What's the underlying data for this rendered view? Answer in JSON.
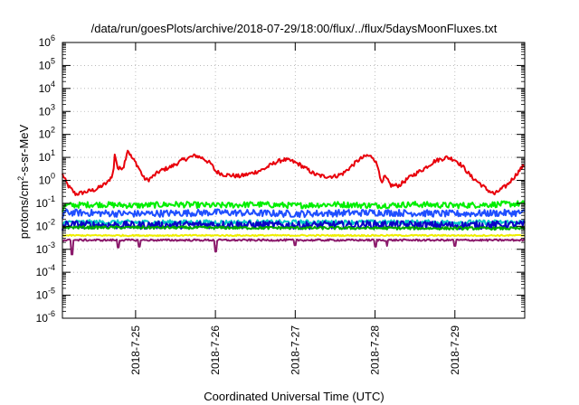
{
  "chart_data": {
    "type": "line",
    "title": "/data/run/goesPlots/archive/2018-07-29/18:00/flux/../flux/5daysMoonFluxes.txt",
    "xlabel": "Coordinated Universal Time (UTC)",
    "ylabel": {
      "prefix": "protons/cm",
      "sup": "2",
      "suffix": "-s-sr-MeV"
    },
    "x_unit": "days",
    "xlim": [
      "2018-07-24T02:00",
      "2018-07-29T21:00"
    ],
    "ylim": [
      1e-06,
      1000000.0
    ],
    "yscale": "log",
    "grid": true,
    "x_ticks": [
      "2018-7-25",
      "2018-7-26",
      "2018-7-27",
      "2018-7-28",
      "2018-7-29"
    ],
    "y_ticks": [
      {
        "base": "10",
        "exp": "-6",
        "value": 1e-06
      },
      {
        "base": "10",
        "exp": "-5",
        "value": 1e-05
      },
      {
        "base": "10",
        "exp": "-4",
        "value": 0.0001
      },
      {
        "base": "10",
        "exp": "-3",
        "value": 0.001
      },
      {
        "base": "10",
        "exp": "-2",
        "value": 0.01
      },
      {
        "base": "10",
        "exp": "-1",
        "value": 0.1
      },
      {
        "base": "10",
        "exp": "0",
        "value": 1
      },
      {
        "base": "10",
        "exp": "1",
        "value": 10
      },
      {
        "base": "10",
        "exp": "2",
        "value": 100
      },
      {
        "base": "10",
        "exp": "3",
        "value": 1000
      },
      {
        "base": "10",
        "exp": "4",
        "value": 10000
      },
      {
        "base": "10",
        "exp": "5",
        "value": 100000
      },
      {
        "base": "10",
        "exp": "6",
        "value": 1000000
      }
    ],
    "series": [
      {
        "color": "#e8000b",
        "base": [
          [
            -0.92,
            2
          ],
          [
            -0.85,
            0.6
          ],
          [
            -0.75,
            0.25
          ],
          [
            -0.65,
            0.3
          ],
          [
            -0.5,
            0.4
          ],
          [
            -0.35,
            0.8
          ],
          [
            -0.28,
            2
          ],
          [
            -0.26,
            15
          ],
          [
            -0.22,
            3
          ],
          [
            -0.15,
            4
          ],
          [
            -0.1,
            22
          ],
          [
            -0.05,
            10
          ],
          [
            0.0,
            6
          ],
          [
            0.05,
            3
          ],
          [
            0.1,
            1.3
          ],
          [
            0.15,
            1
          ],
          [
            0.22,
            1.5
          ],
          [
            0.3,
            2.5
          ],
          [
            0.45,
            4
          ],
          [
            0.6,
            8
          ],
          [
            0.75,
            12
          ],
          [
            0.85,
            9
          ],
          [
            0.95,
            5
          ],
          [
            1.0,
            2.5
          ],
          [
            1.1,
            1.8
          ],
          [
            1.3,
            1.5
          ],
          [
            1.45,
            2
          ],
          [
            1.6,
            3
          ],
          [
            1.75,
            6
          ],
          [
            1.85,
            8
          ],
          [
            1.95,
            7
          ],
          [
            2.05,
            5
          ],
          [
            2.15,
            3
          ],
          [
            2.25,
            1.8
          ],
          [
            2.35,
            1.5
          ],
          [
            2.5,
            1.5
          ],
          [
            2.6,
            2
          ],
          [
            2.7,
            4
          ],
          [
            2.8,
            8
          ],
          [
            2.9,
            12
          ],
          [
            2.98,
            10
          ],
          [
            3.05,
            3
          ],
          [
            3.08,
            0.6
          ],
          [
            3.12,
            1.5
          ],
          [
            3.2,
            0.6
          ],
          [
            3.3,
            0.6
          ],
          [
            3.45,
            1.5
          ],
          [
            3.6,
            3
          ],
          [
            3.75,
            7
          ],
          [
            3.9,
            10
          ],
          [
            4.0,
            8
          ],
          [
            4.1,
            4
          ],
          [
            4.2,
            1.5
          ],
          [
            4.3,
            0.8
          ],
          [
            4.4,
            0.4
          ],
          [
            4.5,
            0.25
          ],
          [
            4.55,
            0.35
          ],
          [
            4.65,
            0.6
          ],
          [
            4.75,
            1.5
          ],
          [
            4.85,
            4
          ],
          [
            4.95,
            6
          ],
          [
            5.05,
            7
          ]
        ],
        "noise": 0.09
      },
      {
        "color": "#00ee00",
        "base": [
          [
            -0.92,
            0.04
          ],
          [
            -0.9,
            0.08
          ],
          [
            -0.5,
            0.09
          ],
          [
            0,
            0.08
          ],
          [
            0.5,
            0.09
          ],
          [
            1,
            0.08
          ],
          [
            1.5,
            0.09
          ],
          [
            2,
            0.08
          ],
          [
            2.5,
            0.09
          ],
          [
            3,
            0.08
          ],
          [
            3.5,
            0.09
          ],
          [
            4,
            0.08
          ],
          [
            4.5,
            0.09
          ],
          [
            5.05,
            0.1
          ]
        ],
        "noise": 0.13
      },
      {
        "color": "#1f4fff",
        "base": [
          [
            -0.92,
            0.02
          ],
          [
            -0.9,
            0.04
          ],
          [
            0,
            0.035
          ],
          [
            1,
            0.04
          ],
          [
            2,
            0.035
          ],
          [
            3,
            0.04
          ],
          [
            4,
            0.035
          ],
          [
            5.05,
            0.04
          ]
        ],
        "noise": 0.15
      },
      {
        "color": "#00c8c8",
        "base": [
          [
            -0.92,
            0.01
          ],
          [
            -0.9,
            0.015
          ],
          [
            5.05,
            0.015
          ]
        ],
        "noise": 0.1
      },
      {
        "color": "#0a00c8",
        "base": [
          [
            -0.92,
            0.006
          ],
          [
            -0.9,
            0.012
          ],
          [
            0,
            0.011
          ],
          [
            1,
            0.012
          ],
          [
            2,
            0.011
          ],
          [
            3,
            0.012
          ],
          [
            4,
            0.011
          ],
          [
            5.05,
            0.012
          ]
        ],
        "noise": 0.17
      },
      {
        "color": "#00aa00",
        "base": [
          [
            -0.92,
            0.008
          ],
          [
            -0.9,
            0.009
          ],
          [
            5.05,
            0.008
          ]
        ],
        "noise": 0.06
      },
      {
        "color": "#eeee00",
        "base": [
          [
            -0.92,
            0.004
          ],
          [
            5.05,
            0.004
          ]
        ],
        "noise": 0.03
      },
      {
        "color": "#8b1a6b",
        "base": [
          [
            -0.92,
            0.0025
          ],
          [
            5.05,
            0.0025
          ]
        ],
        "noise": 0.04,
        "dips": [
          [
            -0.8,
            0.0006
          ],
          [
            -0.22,
            0.0012
          ],
          [
            0.05,
            0.0013
          ],
          [
            1.0,
            0.0008
          ],
          [
            2.0,
            0.0015
          ],
          [
            3.0,
            0.0013
          ],
          [
            3.15,
            0.0014
          ],
          [
            4.0,
            0.0014
          ]
        ]
      }
    ]
  }
}
